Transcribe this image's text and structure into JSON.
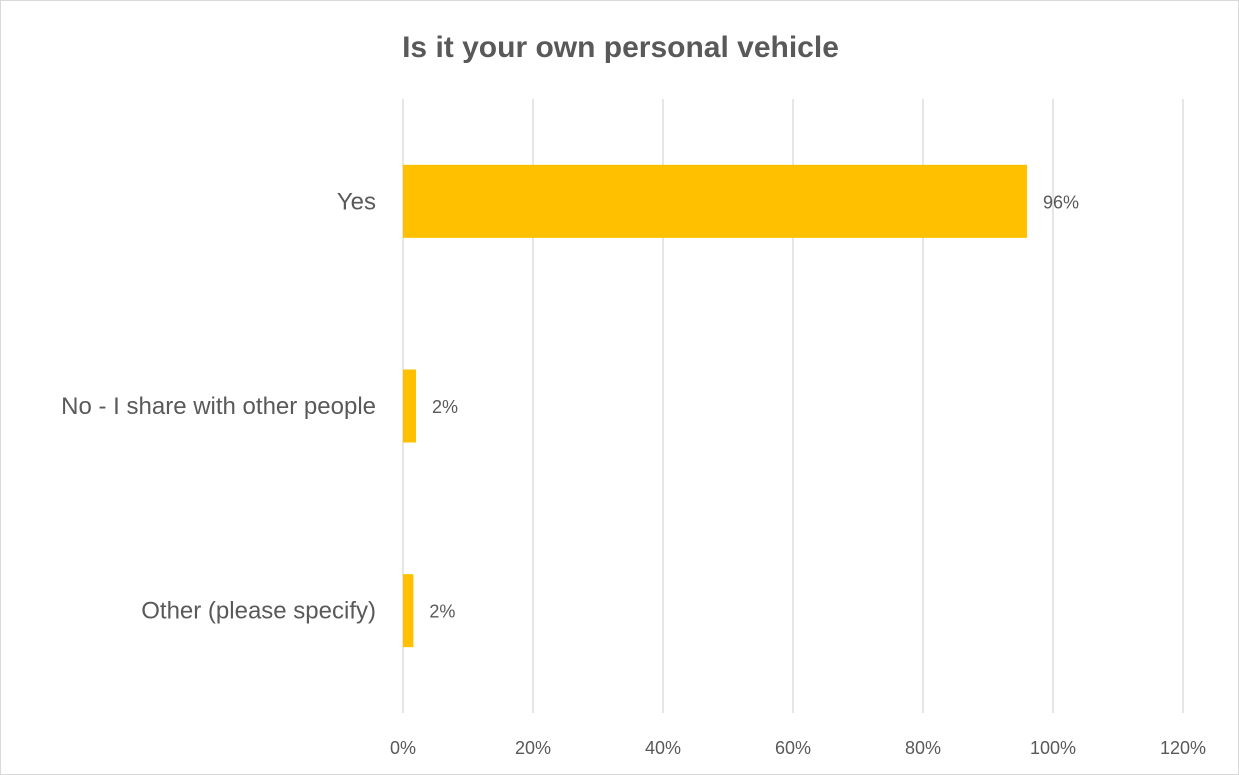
{
  "chart_data": {
    "type": "bar",
    "orientation": "horizontal",
    "title": "Is it your own personal vehicle",
    "categories": [
      "Yes",
      "No - I share with other people",
      "Other (please specify)"
    ],
    "values": [
      96,
      2,
      1.6
    ],
    "value_labels": [
      "96%",
      "2%",
      "2%"
    ],
    "xlim": [
      0,
      120
    ],
    "x_ticks": [
      "0%",
      "20%",
      "40%",
      "60%",
      "80%",
      "100%",
      "120%"
    ],
    "grid": true,
    "legend": "none",
    "bar_color": "#FFC000",
    "grid_color": "#d9d9d9",
    "text_color": "#595959"
  }
}
